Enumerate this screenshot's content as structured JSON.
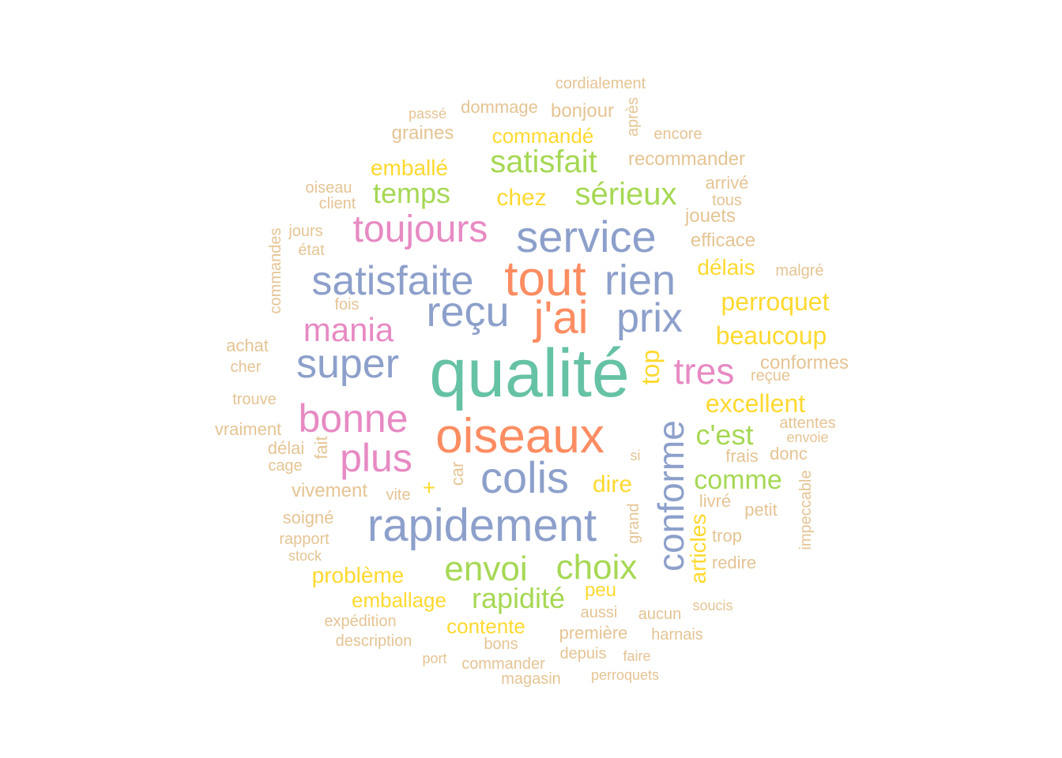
{
  "colors": {
    "teal": "#66c2a5",
    "orange": "#fc8d62",
    "blue": "#8da0cb",
    "pink": "#e78ac3",
    "green": "#a6d854",
    "yellow": "#ffd92f",
    "tan": "#e5c494"
  },
  "words": [
    {
      "text": "qualité",
      "color": "teal"
    },
    {
      "text": "oiseaux",
      "color": "orange"
    },
    {
      "text": "tout",
      "color": "orange"
    },
    {
      "text": "j'ai",
      "color": "orange"
    },
    {
      "text": "rapidement",
      "color": "blue"
    },
    {
      "text": "colis",
      "color": "blue"
    },
    {
      "text": "conforme",
      "color": "blue"
    },
    {
      "text": "service",
      "color": "blue"
    },
    {
      "text": "satisfaite",
      "color": "blue"
    },
    {
      "text": "reçu",
      "color": "blue"
    },
    {
      "text": "rien",
      "color": "blue"
    },
    {
      "text": "prix",
      "color": "blue"
    },
    {
      "text": "super",
      "color": "blue"
    },
    {
      "text": "bonne",
      "color": "pink"
    },
    {
      "text": "plus",
      "color": "pink"
    },
    {
      "text": "toujours",
      "color": "pink"
    },
    {
      "text": "mania",
      "color": "pink"
    },
    {
      "text": "tres",
      "color": "pink"
    },
    {
      "text": "envoi",
      "color": "green"
    },
    {
      "text": "choix",
      "color": "green"
    },
    {
      "text": "satisfait",
      "color": "green"
    },
    {
      "text": "sérieux",
      "color": "green"
    },
    {
      "text": "rapidité",
      "color": "green"
    },
    {
      "text": "c'est",
      "color": "green"
    },
    {
      "text": "comme",
      "color": "green"
    },
    {
      "text": "temps",
      "color": "green"
    },
    {
      "text": "top",
      "color": "yellow"
    },
    {
      "text": "excellent",
      "color": "yellow"
    },
    {
      "text": "beaucoup",
      "color": "yellow"
    },
    {
      "text": "perroquet",
      "color": "yellow"
    },
    {
      "text": "problème",
      "color": "yellow"
    },
    {
      "text": "dire",
      "color": "yellow"
    },
    {
      "text": "chez",
      "color": "yellow"
    },
    {
      "text": "emballé",
      "color": "yellow"
    },
    {
      "text": "commandé",
      "color": "yellow"
    },
    {
      "text": "délais",
      "color": "yellow"
    },
    {
      "text": "emballage",
      "color": "yellow"
    },
    {
      "text": "contente",
      "color": "yellow"
    },
    {
      "text": "articles",
      "color": "yellow"
    },
    {
      "text": "peu",
      "color": "yellow"
    },
    {
      "text": "+",
      "color": "yellow"
    },
    {
      "text": "cordialement",
      "color": "tan"
    },
    {
      "text": "passé",
      "color": "tan"
    },
    {
      "text": "dommage",
      "color": "tan"
    },
    {
      "text": "bonjour",
      "color": "tan"
    },
    {
      "text": "après",
      "color": "tan"
    },
    {
      "text": "graines",
      "color": "tan"
    },
    {
      "text": "encore",
      "color": "tan"
    },
    {
      "text": "recommander",
      "color": "tan"
    },
    {
      "text": "oiseau",
      "color": "tan"
    },
    {
      "text": "client",
      "color": "tan"
    },
    {
      "text": "arrivé",
      "color": "tan"
    },
    {
      "text": "tous",
      "color": "tan"
    },
    {
      "text": "jouets",
      "color": "tan"
    },
    {
      "text": "commandes",
      "color": "tan"
    },
    {
      "text": "jours",
      "color": "tan"
    },
    {
      "text": "état",
      "color": "tan"
    },
    {
      "text": "efficace",
      "color": "tan"
    },
    {
      "text": "malgré",
      "color": "tan"
    },
    {
      "text": "fois",
      "color": "tan"
    },
    {
      "text": "achat",
      "color": "tan"
    },
    {
      "text": "cher",
      "color": "tan"
    },
    {
      "text": "conformes",
      "color": "tan"
    },
    {
      "text": "reçue",
      "color": "tan"
    },
    {
      "text": "trouve",
      "color": "tan"
    },
    {
      "text": "attentes",
      "color": "tan"
    },
    {
      "text": "envoie",
      "color": "tan"
    },
    {
      "text": "vraiment",
      "color": "tan"
    },
    {
      "text": "fait",
      "color": "tan"
    },
    {
      "text": "délai",
      "color": "tan"
    },
    {
      "text": "cage",
      "color": "tan"
    },
    {
      "text": "si",
      "color": "tan"
    },
    {
      "text": "frais",
      "color": "tan"
    },
    {
      "text": "donc",
      "color": "tan"
    },
    {
      "text": "car",
      "color": "tan"
    },
    {
      "text": "vivement",
      "color": "tan"
    },
    {
      "text": "vite",
      "color": "tan"
    },
    {
      "text": "impeccable",
      "color": "tan"
    },
    {
      "text": "livré",
      "color": "tan"
    },
    {
      "text": "petit",
      "color": "tan"
    },
    {
      "text": "soigné",
      "color": "tan"
    },
    {
      "text": "grand",
      "color": "tan"
    },
    {
      "text": "rapport",
      "color": "tan"
    },
    {
      "text": "trop",
      "color": "tan"
    },
    {
      "text": "stock",
      "color": "tan"
    },
    {
      "text": "redire",
      "color": "tan"
    },
    {
      "text": "aussi",
      "color": "tan"
    },
    {
      "text": "aucun",
      "color": "tan"
    },
    {
      "text": "soucis",
      "color": "tan"
    },
    {
      "text": "expédition",
      "color": "tan"
    },
    {
      "text": "première",
      "color": "tan"
    },
    {
      "text": "harnais",
      "color": "tan"
    },
    {
      "text": "description",
      "color": "tan"
    },
    {
      "text": "bons",
      "color": "tan"
    },
    {
      "text": "port",
      "color": "tan"
    },
    {
      "text": "commander",
      "color": "tan"
    },
    {
      "text": "depuis",
      "color": "tan"
    },
    {
      "text": "faire",
      "color": "tan"
    },
    {
      "text": "magasin",
      "color": "tan"
    },
    {
      "text": "perroquets",
      "color": "tan"
    }
  ]
}
